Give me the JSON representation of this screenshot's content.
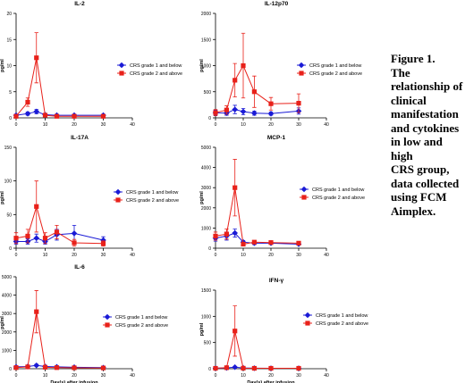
{
  "caption": {
    "lines": [
      "Figure 1.",
      "The",
      "relationship of",
      "clinical",
      "manifestation",
      "and cytokines",
      "in low and high",
      "CRS group,",
      "data collected",
      "using FCM",
      "Aimplex."
    ]
  },
  "colors": {
    "low": "#1a1ad6",
    "high": "#e8211a",
    "axis": "#000000"
  },
  "chart_data": [
    {
      "type": "line",
      "title": "IL-2",
      "xlabel": "",
      "ylabel": "pg/ml",
      "xlim": [
        0,
        40
      ],
      "ylim": [
        0,
        20
      ],
      "xticks": [
        0,
        10,
        20,
        30,
        40
      ],
      "yticks": [
        0,
        5,
        10,
        15,
        20
      ],
      "legend": "right",
      "series": [
        {
          "name": "CRS grade 1 and below",
          "color": "#1a1ad6",
          "marker": "diamond",
          "x": [
            0,
            4,
            7,
            10,
            14,
            20,
            30
          ],
          "y": [
            0.5,
            0.8,
            1.2,
            0.6,
            0.5,
            0.5,
            0.5
          ],
          "err": [
            0.2,
            0.3,
            0.4,
            0.2,
            0.2,
            0.2,
            0.2
          ]
        },
        {
          "name": "CRS grade 2 and above",
          "color": "#e8211a",
          "marker": "square",
          "x": [
            0,
            4,
            7,
            10,
            14,
            20,
            30
          ],
          "y": [
            0.3,
            3.0,
            11.5,
            0.5,
            0.3,
            0.3,
            0.3
          ],
          "err": [
            0.2,
            0.8,
            4.8,
            0.3,
            0.2,
            0.2,
            0.2
          ]
        }
      ]
    },
    {
      "type": "line",
      "title": "IL-12p70",
      "xlabel": "",
      "ylabel": "pg/ml",
      "xlim": [
        0,
        40
      ],
      "ylim": [
        0,
        2000
      ],
      "xticks": [
        0,
        10,
        20,
        30,
        40
      ],
      "yticks": [
        0,
        500,
        1000,
        1500,
        2000
      ],
      "legend": "right",
      "series": [
        {
          "name": "CRS grade 1 and below",
          "color": "#1a1ad6",
          "marker": "diamond",
          "x": [
            0,
            4,
            7,
            10,
            14,
            20,
            30
          ],
          "y": [
            100,
            90,
            160,
            120,
            90,
            80,
            130
          ],
          "err": [
            50,
            40,
            80,
            60,
            40,
            30,
            60
          ]
        },
        {
          "name": "CRS grade 2 and above",
          "color": "#e8211a",
          "marker": "square",
          "x": [
            0,
            4,
            7,
            10,
            14,
            20,
            30
          ],
          "y": [
            100,
            150,
            720,
            1000,
            500,
            270,
            280
          ],
          "err": [
            60,
            80,
            320,
            620,
            300,
            120,
            180
          ]
        }
      ]
    },
    {
      "type": "line",
      "title": "IL-17A",
      "xlabel": "",
      "ylabel": "pg/ml",
      "xlim": [
        0,
        40
      ],
      "ylim": [
        0,
        150
      ],
      "xticks": [
        0,
        10,
        20,
        30,
        40
      ],
      "yticks": [
        0,
        50,
        100,
        150
      ],
      "legend": "right",
      "series": [
        {
          "name": "CRS grade 1 and below",
          "color": "#1a1ad6",
          "marker": "diamond",
          "x": [
            0,
            4,
            7,
            10,
            14,
            20,
            30
          ],
          "y": [
            10,
            10,
            15,
            10,
            20,
            22,
            12
          ],
          "err": [
            4,
            4,
            6,
            4,
            8,
            12,
            5
          ]
        },
        {
          "name": "CRS grade 2 and above",
          "color": "#e8211a",
          "marker": "square",
          "x": [
            0,
            4,
            7,
            10,
            14,
            20,
            30
          ],
          "y": [
            15,
            18,
            62,
            15,
            24,
            8,
            7
          ],
          "err": [
            8,
            10,
            38,
            8,
            10,
            5,
            4
          ]
        }
      ]
    },
    {
      "type": "line",
      "title": "MCP-1",
      "xlabel": "",
      "ylabel": "pg/ml",
      "xlim": [
        0,
        40
      ],
      "ylim": [
        0,
        5000
      ],
      "xticks": [
        0,
        10,
        20,
        30,
        40
      ],
      "yticks": [
        0,
        1000,
        2000,
        3000,
        4000,
        5000
      ],
      "legend": "right",
      "series": [
        {
          "name": "CRS grade 1 and below",
          "color": "#1a1ad6",
          "marker": "diamond",
          "x": [
            0,
            4,
            7,
            10,
            14,
            20,
            30
          ],
          "y": [
            500,
            600,
            750,
            300,
            250,
            250,
            200
          ],
          "err": [
            150,
            200,
            200,
            80,
            70,
            60,
            50
          ]
        },
        {
          "name": "CRS grade 2 and above",
          "color": "#e8211a",
          "marker": "square",
          "x": [
            0,
            4,
            7,
            10,
            14,
            20,
            30
          ],
          "y": [
            600,
            700,
            3000,
            200,
            300,
            280,
            250
          ],
          "err": [
            200,
            250,
            1400,
            80,
            80,
            70,
            60
          ]
        }
      ]
    },
    {
      "type": "line",
      "title": "IL-6",
      "xlabel": "Day(s) after infusion",
      "ylabel": "pg/ml",
      "xlim": [
        0,
        40
      ],
      "ylim": [
        0,
        5000
      ],
      "xticks": [
        0,
        10,
        20,
        30,
        40
      ],
      "yticks": [
        0,
        1000,
        2000,
        3000,
        4000,
        5000
      ],
      "legend": "right",
      "series": [
        {
          "name": "CRS grade 1 and below",
          "color": "#1a1ad6",
          "marker": "diamond",
          "x": [
            0,
            4,
            7,
            10,
            14,
            20,
            30
          ],
          "y": [
            100,
            120,
            180,
            120,
            100,
            80,
            60
          ],
          "err": [
            40,
            50,
            60,
            40,
            30,
            30,
            20
          ]
        },
        {
          "name": "CRS grade 2 and above",
          "color": "#e8211a",
          "marker": "square",
          "x": [
            0,
            4,
            7,
            10,
            14,
            20,
            30
          ],
          "y": [
            60,
            100,
            3100,
            80,
            60,
            50,
            40
          ],
          "err": [
            30,
            60,
            1150,
            40,
            30,
            20,
            20
          ]
        }
      ]
    },
    {
      "type": "line",
      "title": "IFN-γ",
      "xlabel": "Day(s) after infusion",
      "ylabel": "pg/ml",
      "xlim": [
        0,
        40
      ],
      "ylim": [
        0,
        1500
      ],
      "xticks": [
        0,
        10,
        20,
        30,
        40
      ],
      "yticks": [
        0,
        500,
        1000,
        1500
      ],
      "legend": "right",
      "series": [
        {
          "name": "CRS grade 1 and below",
          "color": "#1a1ad6",
          "marker": "diamond",
          "x": [
            0,
            4,
            7,
            10,
            14,
            20,
            30
          ],
          "y": [
            10,
            15,
            30,
            15,
            10,
            8,
            8
          ],
          "err": [
            5,
            8,
            15,
            8,
            5,
            4,
            4
          ]
        },
        {
          "name": "CRS grade 2 and above",
          "color": "#e8211a",
          "marker": "square",
          "x": [
            0,
            4,
            7,
            10,
            14,
            20,
            30
          ],
          "y": [
            8,
            20,
            720,
            10,
            8,
            8,
            8
          ],
          "err": [
            4,
            10,
            480,
            5,
            4,
            4,
            4
          ]
        }
      ]
    }
  ]
}
